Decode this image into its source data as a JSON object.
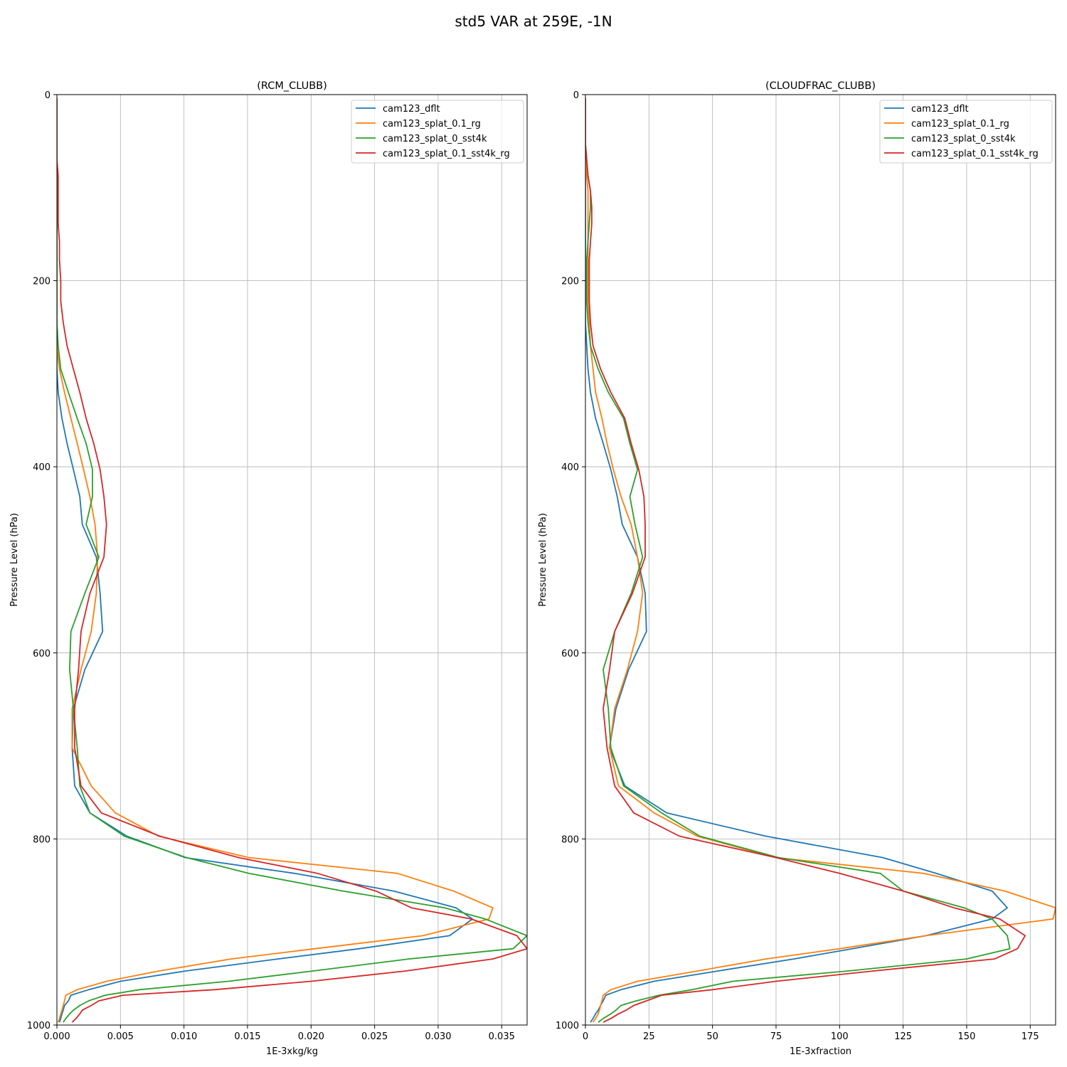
{
  "figure_title": "std5 VAR at 259E, -1N",
  "series_colors": {
    "cam123_dflt": "#1f77b4",
    "cam123_splat_0.1_rg": "#ff7f0e",
    "cam123_splat_0_sst4k": "#2ca02c",
    "cam123_splat_0.1_sst4k_rg": "#d62728"
  },
  "chart_data": [
    {
      "type": "line",
      "title": "(RCM_CLUBB)",
      "xlabel": "1E-3xkg/kg",
      "ylabel": "Pressure Level (hPa)",
      "xlim": [
        0,
        0.037
      ],
      "ylim": [
        1000,
        0
      ],
      "y_inverted": true,
      "xticks": [
        "0.000",
        "0.005",
        "0.010",
        "0.015",
        "0.020",
        "0.025",
        "0.030",
        "0.035"
      ],
      "xtick_values": [
        0,
        0.005,
        0.01,
        0.015,
        0.02,
        0.025,
        0.03,
        0.035
      ],
      "yticks": [
        "0",
        "200",
        "400",
        "600",
        "800",
        "1000"
      ],
      "ytick_values": [
        0,
        200,
        400,
        600,
        800,
        1000
      ],
      "grid": true,
      "legend_position": "top-right",
      "pressure_levels": [
        3.6,
        7.4,
        14,
        24,
        37,
        53,
        70,
        87,
        104,
        121,
        139,
        158,
        178,
        200,
        222,
        245,
        270,
        295,
        320,
        348,
        375,
        403,
        432,
        462,
        497,
        536,
        577,
        618,
        660,
        702,
        743,
        772,
        797,
        820,
        837,
        856,
        874,
        886,
        904,
        918,
        929,
        942,
        953,
        962,
        968,
        974,
        979,
        984,
        988,
        993,
        997
      ],
      "series": [
        {
          "name": "cam123_dflt",
          "values": [
            0,
            0,
            0,
            0,
            0,
            0,
            0,
            0,
            0,
            0,
            0,
            0,
            0,
            0,
            0,
            0,
            0,
            0,
            0.0001,
            0.0004,
            0.0008,
            0.0013,
            0.0018,
            0.002,
            0.0031,
            0.0034,
            0.0036,
            0.0022,
            0.0013,
            0.0012,
            0.0014,
            0.0026,
            0.0055,
            0.0101,
            0.0187,
            0.0265,
            0.0314,
            0.0327,
            0.0309,
            0.0238,
            0.0174,
            0.0101,
            0.005,
            0.0025,
            0.0011,
            0.0009,
            0.0006,
            0.0005,
            0.0004,
            0.0003,
            0.0002
          ]
        },
        {
          "name": "cam123_splat_0.1_rg",
          "values": [
            0,
            0,
            0,
            0,
            0,
            0,
            0,
            0,
            0,
            0,
            0,
            0,
            0,
            0,
            0,
            0,
            0,
            0.0002,
            0.0006,
            0.0011,
            0.0016,
            0.0021,
            0.0026,
            0.003,
            0.0032,
            0.0031,
            0.0027,
            0.0019,
            0.0012,
            0.0012,
            0.0027,
            0.0046,
            0.008,
            0.0151,
            0.0268,
            0.0312,
            0.0343,
            0.034,
            0.0288,
            0.0203,
            0.0137,
            0.008,
            0.0039,
            0.0016,
            0.0007,
            0.0006,
            0.0005,
            0.0004,
            0.0003,
            0.0002,
            0.0001
          ]
        },
        {
          "name": "cam123_splat_0_sst4k",
          "values": [
            0,
            0,
            0,
            0,
            0,
            0,
            0,
            0,
            0,
            0,
            0,
            0,
            0,
            0,
            0,
            0,
            0.0001,
            0.0003,
            0.0009,
            0.0016,
            0.0023,
            0.0028,
            0.0028,
            0.0023,
            0.0033,
            0.0022,
            0.0011,
            0.001,
            0.0013,
            0.0016,
            0.0018,
            0.0026,
            0.0053,
            0.0102,
            0.0151,
            0.0225,
            0.0305,
            0.0337,
            0.037,
            0.0359,
            0.0277,
            0.0201,
            0.0135,
            0.0065,
            0.0038,
            0.0025,
            0.0018,
            0.0013,
            0.001,
            0.0007,
            0.0005
          ]
        },
        {
          "name": "cam123_splat_0.1_sst4k_rg",
          "values": [
            0,
            0,
            0,
            0,
            0,
            0,
            0,
            0.0001,
            0.0001,
            0.0001,
            0.0001,
            0.0002,
            0.0002,
            0.0003,
            0.0003,
            0.0005,
            0.0008,
            0.0013,
            0.0018,
            0.0023,
            0.0029,
            0.0034,
            0.0037,
            0.0039,
            0.0037,
            0.0026,
            0.0019,
            0.0017,
            0.0014,
            0.0014,
            0.0019,
            0.0035,
            0.0081,
            0.0143,
            0.0205,
            0.0251,
            0.0279,
            0.0326,
            0.0362,
            0.037,
            0.0343,
            0.0274,
            0.02,
            0.0124,
            0.0052,
            0.0033,
            0.0027,
            0.002,
            0.0018,
            0.0015,
            0.0012
          ]
        }
      ]
    },
    {
      "type": "line",
      "title": "(CLOUDFRAC_CLUBB)",
      "xlabel": "1E-3xfraction",
      "ylabel": "Pressure Level (hPa)",
      "xlim": [
        0,
        185
      ],
      "ylim": [
        1000,
        0
      ],
      "y_inverted": true,
      "xticks": [
        "0",
        "25",
        "50",
        "75",
        "100",
        "125",
        "150",
        "175"
      ],
      "xtick_values": [
        0,
        25,
        50,
        75,
        100,
        125,
        150,
        175
      ],
      "yticks": [
        "0",
        "200",
        "400",
        "600",
        "800",
        "1000"
      ],
      "ytick_values": [
        0,
        200,
        400,
        600,
        800,
        1000
      ],
      "grid": true,
      "legend_position": "top-right",
      "pressure_levels": [
        3.6,
        7.4,
        14,
        24,
        37,
        53,
        70,
        87,
        104,
        121,
        139,
        158,
        178,
        200,
        222,
        245,
        270,
        295,
        320,
        348,
        375,
        403,
        432,
        462,
        497,
        536,
        577,
        618,
        660,
        702,
        743,
        772,
        797,
        820,
        837,
        856,
        874,
        886,
        904,
        918,
        929,
        942,
        953,
        962,
        968,
        974,
        979,
        984,
        988,
        993,
        997
      ],
      "series": [
        {
          "name": "cam123_dflt",
          "values": [
            0,
            0,
            0,
            0,
            0,
            0,
            0,
            0,
            0,
            0,
            0,
            0,
            0,
            0,
            0,
            0,
            0.5,
            1,
            2,
            4,
            7,
            10,
            12.5,
            14.5,
            20.5,
            23.5,
            24,
            17,
            12,
            9.5,
            15.5,
            32,
            71,
            117,
            138,
            160,
            166,
            160,
            134,
            105,
            82,
            52,
            27,
            14,
            8,
            7,
            6,
            5,
            4,
            3,
            2
          ]
        },
        {
          "name": "cam123_splat_0.1_rg",
          "values": [
            0,
            0,
            0,
            0,
            0,
            0,
            0,
            0.5,
            1,
            1,
            1,
            1,
            1,
            1,
            1,
            1.5,
            2,
            3,
            4,
            6.5,
            8.5,
            11,
            14,
            18,
            20.5,
            22.5,
            20.5,
            16.5,
            11.5,
            9.5,
            13,
            27,
            44,
            75,
            133,
            165,
            185,
            184,
            134,
            100,
            71,
            44,
            20.5,
            10,
            7,
            6.5,
            6,
            5.5,
            5,
            4,
            3
          ]
        },
        {
          "name": "cam123_splat_0_sst4k",
          "values": [
            0,
            0,
            0,
            0,
            0,
            0,
            0.5,
            1,
            2,
            2,
            1.5,
            1,
            0.5,
            0.5,
            0.5,
            1,
            2,
            5,
            9,
            15,
            17.5,
            20.5,
            17.5,
            19.5,
            22.5,
            18,
            11.5,
            7,
            9,
            10,
            15,
            30,
            45,
            76,
            116,
            125,
            149,
            160,
            166,
            167,
            150,
            103,
            58,
            42,
            29,
            20,
            14,
            12,
            10,
            7,
            5
          ]
        },
        {
          "name": "cam123_splat_0.1_sst4k_rg",
          "values": [
            0,
            0,
            0,
            0,
            0,
            0,
            0.5,
            1,
            2,
            2.5,
            2.5,
            2,
            1.5,
            1.5,
            1.5,
            2,
            3,
            6,
            10,
            15.5,
            18,
            21,
            23,
            23.5,
            23.5,
            18.5,
            11.5,
            9.5,
            7,
            8.5,
            11.5,
            19,
            37,
            75,
            100,
            125,
            145,
            163,
            173,
            170,
            161,
            113,
            75,
            50,
            30,
            24,
            19,
            16,
            13,
            10,
            7
          ]
        }
      ]
    }
  ]
}
